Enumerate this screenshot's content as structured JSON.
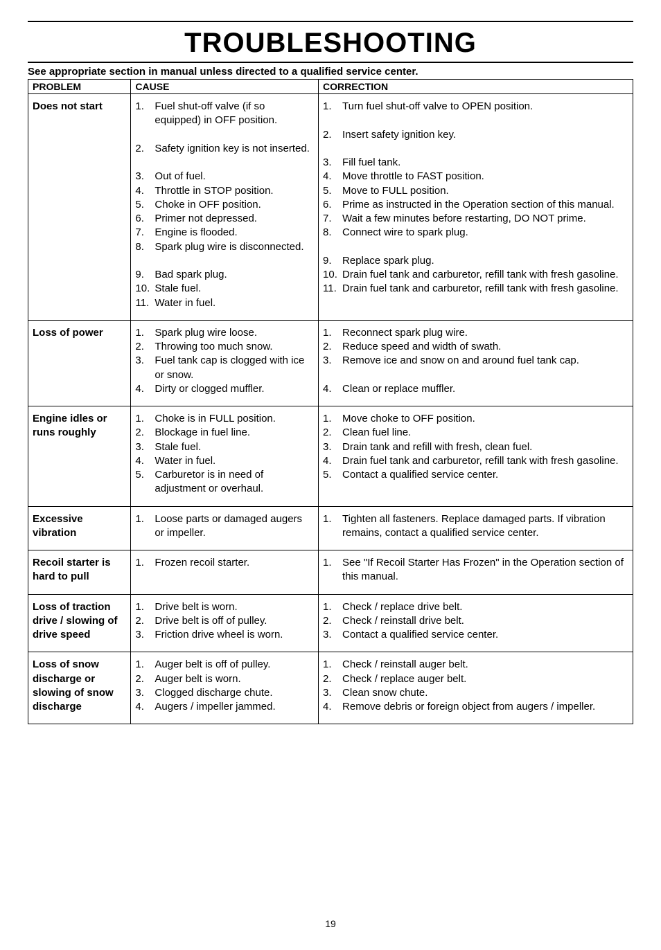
{
  "title": "TROUBLESHOOTING",
  "subtitle": "See appropriate section in manual unless directed to a qualified service center.",
  "headers": {
    "problem": "PROBLEM",
    "cause": "CAUSE",
    "correction": "CORRECTION"
  },
  "rows": [
    {
      "problem": "Does not start",
      "cause": [
        "Fuel shut-off valve (if so equipped) in OFF position.",
        "Safety ignition key is not inserted.",
        "Out of fuel.",
        "Throttle in STOP position.",
        "Choke in OFF position.",
        "Primer not depressed.",
        "Engine is flooded.",
        "Spark plug wire is disconnected.",
        "Bad spark plug.",
        "Stale fuel.",
        "Water in fuel."
      ],
      "correction": [
        "Turn fuel shut-off valve to OPEN position.",
        "Insert safety ignition key.",
        "Fill fuel tank.",
        "Move throttle to FAST position.",
        "Move to FULL position.",
        "Prime as instructed in the Operation section of this manual.",
        "Wait a few minutes before restarting, DO NOT prime.",
        "Connect wire to spark plug.",
        "Replace spark plug.",
        "Drain fuel tank and carburetor, refill tank with fresh gasoline.",
        "Drain fuel tank and carburetor, refill tank with fresh gasoline."
      ],
      "cause_blank_after": [
        0,
        1,
        7
      ],
      "correction_blank_after": [
        0,
        1,
        7
      ]
    },
    {
      "problem": "Loss of power",
      "cause": [
        "Spark plug wire loose.",
        "Throwing too much snow.",
        "Fuel tank cap is clogged with ice or snow.",
        "Dirty or clogged muffler."
      ],
      "correction": [
        "Reconnect spark plug wire.",
        "Reduce speed and width of swath.",
        "Remove ice and snow on and around fuel tank cap.",
        "Clean or replace muffler."
      ],
      "cause_blank_after": [],
      "correction_blank_after": [
        2
      ]
    },
    {
      "problem": "Engine idles or runs roughly",
      "cause": [
        "Choke is in FULL position.",
        "Blockage in fuel line.",
        "Stale fuel.",
        "Water in fuel.",
        "Carburetor is in need of adjustment or overhaul."
      ],
      "correction": [
        "Move choke to OFF position.",
        "Clean fuel line.",
        "Drain tank and refill with fresh, clean fuel.",
        "Drain fuel tank and carburetor, refill tank with fresh gasoline.",
        "Contact a qualified service center."
      ],
      "cause_blank_after": [],
      "correction_blank_after": []
    },
    {
      "problem": "Excessive vibration",
      "cause": [
        "Loose parts or damaged augers or impeller."
      ],
      "correction": [
        "Tighten all fasteners.  Replace damaged parts. If vibration remains, contact a qualified service center."
      ],
      "cause_blank_after": [],
      "correction_blank_after": []
    },
    {
      "problem": "Recoil starter is hard to pull",
      "cause": [
        "Frozen recoil starter."
      ],
      "correction": [
        "See \"If Recoil Starter Has Frozen\" in the Operation section of this manual."
      ],
      "cause_blank_after": [],
      "correction_blank_after": []
    },
    {
      "problem": "Loss of traction drive / slowing of drive speed",
      "cause": [
        "Drive belt is worn.",
        "Drive belt is off of pulley.",
        "Friction drive wheel is worn."
      ],
      "correction": [
        "Check / replace drive belt.",
        "Check / reinstall drive belt.",
        "Contact a qualified service center."
      ],
      "cause_blank_after": [],
      "correction_blank_after": []
    },
    {
      "problem": "Loss of snow discharge or slowing of snow discharge",
      "cause": [
        "Auger belt is off of pulley.",
        "Auger belt is worn.",
        "Clogged discharge chute.",
        "Augers / impeller jammed."
      ],
      "correction": [
        "Check / reinstall auger belt.",
        "Check / replace auger belt.",
        "Clean snow chute.",
        "Remove debris or foreign object from augers / impeller."
      ],
      "cause_blank_after": [],
      "correction_blank_after": []
    }
  ],
  "page_number": "19",
  "styling": {
    "title_fontsize": 40,
    "body_fontsize": 15,
    "border_color": "#000000",
    "background_color": "#ffffff",
    "text_color": "#000000",
    "col_widths": [
      "17%",
      "31%",
      "52%"
    ]
  }
}
